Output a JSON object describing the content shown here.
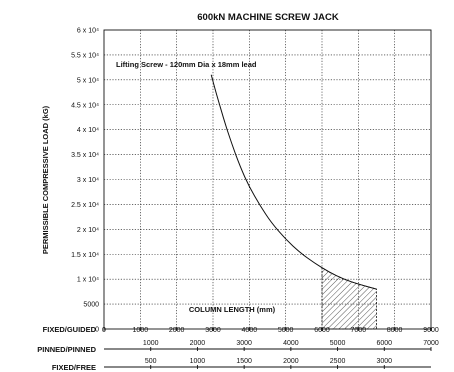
{
  "chart_data": {
    "type": "line",
    "title": "600kN MACHINE SCREW JACK",
    "ylabel": "PERMISSIBLE COMPRESSIVE LOAD (kG)",
    "xlabel": "COLUMN LENGTH (mm)",
    "annotation": "Lifting Screw - 120mm Dia x 18mm lead",
    "ylim": [
      0,
      60000
    ],
    "yticks": [
      {
        "value": 0,
        "label": "0"
      },
      {
        "value": 5000,
        "label": "5000"
      },
      {
        "value": 10000,
        "label": "1 x 10⁴"
      },
      {
        "value": 15000,
        "label": "1.5 x 10⁴"
      },
      {
        "value": 20000,
        "label": "2 x 10⁴"
      },
      {
        "value": 25000,
        "label": "2.5 x 10⁴"
      },
      {
        "value": 30000,
        "label": "3 x 10⁴"
      },
      {
        "value": 35000,
        "label": "3.5 x 10⁴"
      },
      {
        "value": 40000,
        "label": "4 x 10⁴"
      },
      {
        "value": 45000,
        "label": "4.5 x 10⁴"
      },
      {
        "value": 50000,
        "label": "5 x 10⁴"
      },
      {
        "value": 55000,
        "label": "5.5 x 10⁴"
      },
      {
        "value": 60000,
        "label": "6 x 10⁴"
      }
    ],
    "xlim": [
      0,
      9000
    ],
    "xticks": [
      0,
      1000,
      2000,
      3000,
      4000,
      5000,
      6000,
      7000,
      8000,
      9000
    ],
    "scales": [
      {
        "name": "FIXED/GUIDED",
        "max": 9000,
        "ticks": [
          "0",
          "1000",
          "2000",
          "3000",
          "4000",
          "5000",
          "6000",
          "7000",
          "8000",
          "9000"
        ]
      },
      {
        "name": "PINNED/PINNED",
        "max": 7000,
        "ticks": [
          "1000",
          "2000",
          "3000",
          "4000",
          "5000",
          "6000",
          "7000"
        ]
      },
      {
        "name": "FIXED/FREE",
        "max": 3500,
        "ticks": [
          "500",
          "1000",
          "1500",
          "2000",
          "2500",
          "3000"
        ]
      }
    ],
    "series": [
      {
        "x": [
          2950,
          3100,
          3300,
          3500,
          3750,
          4000,
          4300,
          4600,
          5000,
          5400,
          5800,
          6200,
          6600,
          7000,
          7500
        ],
        "y": [
          51000,
          47000,
          42000,
          37500,
          32500,
          28500,
          24700,
          21400,
          18000,
          15300,
          13200,
          11400,
          10000,
          9000,
          8000
        ]
      }
    ],
    "shaded_region": {
      "x": [
        6000,
        7500
      ]
    },
    "grid": true
  }
}
